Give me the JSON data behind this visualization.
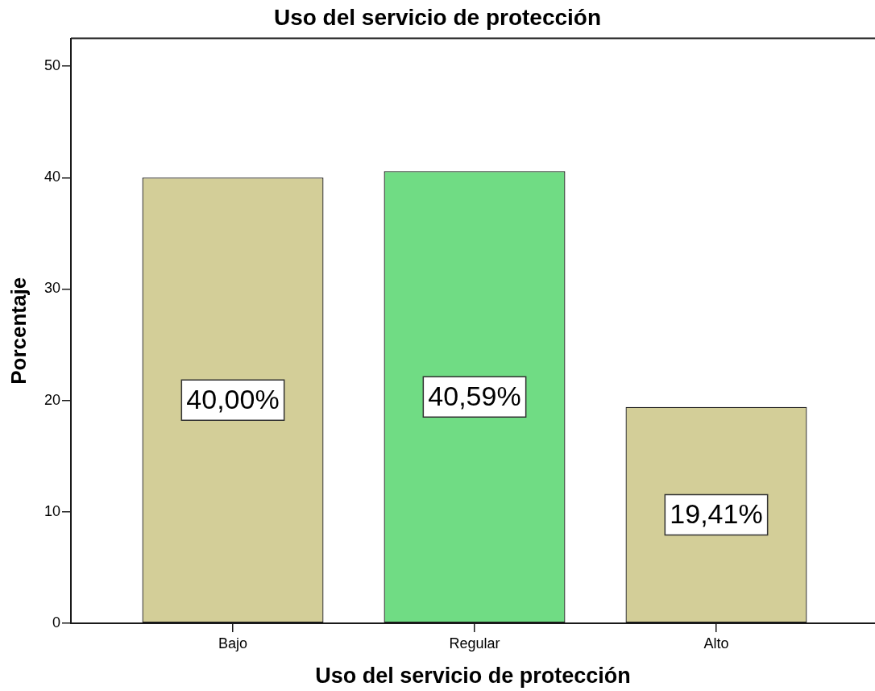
{
  "chart_data": {
    "type": "bar",
    "title": "Uso del servicio de protección",
    "xlabel": "Uso del servicio de protección",
    "ylabel": "Porcentaje",
    "categories": [
      "Bajo",
      "Regular",
      "Alto"
    ],
    "values": [
      40.0,
      40.59,
      19.41
    ],
    "colors": [
      "#d3ce98",
      "#70dc84",
      "#d3ce98"
    ],
    "value_labels": [
      "40,00%",
      "40,59%",
      "19,41%"
    ],
    "ylim": [
      0,
      52.5
    ],
    "yticks": [
      0,
      10,
      20,
      30,
      40,
      50
    ]
  }
}
